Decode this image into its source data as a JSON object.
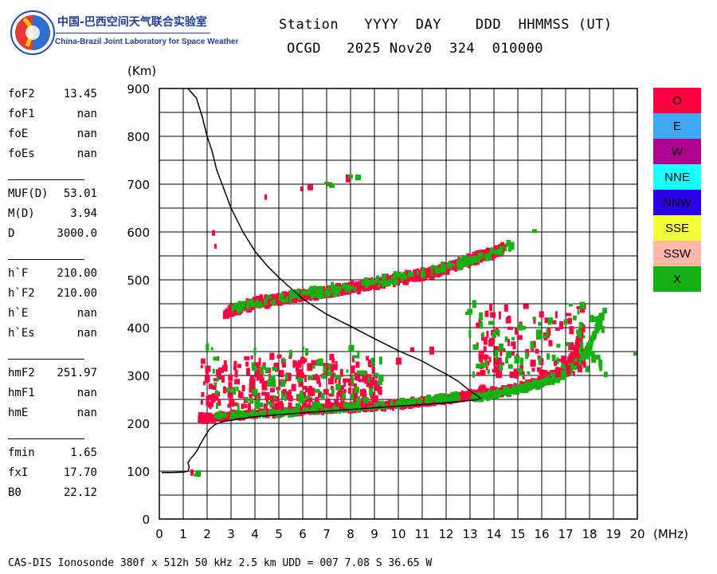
{
  "logo": {
    "cn_text": "中国-巴西空间天气联合实验室",
    "en_text": "China-Brazil Joint Laboratory for Space Weather"
  },
  "header": {
    "line1": "Station   YYYY  DAY    DDD  HHMMSS (UT)",
    "line2": "OCGD   2025 Nov20  324  010000"
  },
  "params": {
    "group1": [
      {
        "label": "foF2",
        "value": "13.45"
      },
      {
        "label": "foF1",
        "value": "nan"
      },
      {
        "label": "foE",
        "value": "nan"
      },
      {
        "label": "foEs",
        "value": "nan"
      }
    ],
    "group2": [
      {
        "label": "MUF(D)",
        "value": "53.01"
      },
      {
        "label": "M(D)",
        "value": "3.94"
      },
      {
        "label": "D",
        "value": "3000.0"
      }
    ],
    "group3": [
      {
        "label": "h`F",
        "value": "210.00"
      },
      {
        "label": "h`F2",
        "value": "210.00"
      },
      {
        "label": "h`E",
        "value": "nan"
      },
      {
        "label": "h`Es",
        "value": "nan"
      }
    ],
    "group4": [
      {
        "label": "hmF2",
        "value": "251.97"
      },
      {
        "label": "hmF1",
        "value": "nan"
      },
      {
        "label": "hmE",
        "value": "nan"
      }
    ],
    "group5": [
      {
        "label": "fmin",
        "value": "1.65"
      },
      {
        "label": "fxI",
        "value": "17.70"
      },
      {
        "label": "B0",
        "value": "22.12"
      }
    ]
  },
  "footer": "CAS-DIS Ionosonde 380f x 512h 50 kHz 2.5 km UDD = 007 7.08 S 36.65 W",
  "chart_data": {
    "type": "scatter",
    "title": "",
    "xlabel": "(MHz)",
    "ylabel": "(Km)",
    "xlim": [
      0,
      20
    ],
    "ylim": [
      0,
      900
    ],
    "xticks": [
      0,
      1,
      2,
      3,
      4,
      5,
      6,
      7,
      8,
      9,
      10,
      11,
      12,
      13,
      14,
      15,
      16,
      17,
      18,
      19,
      20
    ],
    "yticks": [
      0,
      100,
      200,
      300,
      400,
      500,
      600,
      700,
      800,
      900
    ],
    "grid": true,
    "legend_position": "right",
    "legend": [
      {
        "name": "O",
        "color": "#ff0040",
        "text_color": "#000000"
      },
      {
        "name": "E",
        "color": "#3fa9f5",
        "text_color": "#000000"
      },
      {
        "name": "W",
        "color": "#b0008f",
        "text_color": "#000000"
      },
      {
        "name": "NNE",
        "color": "#17ffff",
        "text_color": "#000000"
      },
      {
        "name": "NNW",
        "color": "#2a00e6",
        "text_color": "#000000"
      },
      {
        "name": "SSE",
        "color": "#f5ff3a",
        "text_color": "#000000"
      },
      {
        "name": "SSW",
        "color": "#ffb6a8",
        "text_color": "#000000"
      },
      {
        "name": "X",
        "color": "#14b014",
        "text_color": "#000000"
      }
    ],
    "echo_regions": [
      {
        "name": "O",
        "kind": "trace",
        "points": [
          [
            1.6,
            211
          ],
          [
            2.5,
            214
          ],
          [
            4,
            220
          ],
          [
            6,
            227
          ],
          [
            8,
            233
          ],
          [
            10,
            240
          ],
          [
            11.5,
            248
          ],
          [
            12.5,
            255
          ],
          [
            13.3,
            262
          ],
          [
            13.45,
            270
          ]
        ],
        "spread": 5,
        "density": 70
      },
      {
        "name": "X",
        "kind": "trace",
        "points": [
          [
            2.2,
            214
          ],
          [
            4,
            219
          ],
          [
            6,
            226
          ],
          [
            8,
            233
          ],
          [
            10,
            241
          ],
          [
            11.5,
            250
          ],
          [
            12.5,
            258
          ]
        ],
        "spread": 4,
        "density": 28
      },
      {
        "name": "O",
        "kind": "trace",
        "points": [
          [
            12.9,
            258
          ],
          [
            14,
            266
          ],
          [
            15,
            275
          ],
          [
            16,
            290
          ],
          [
            16.8,
            310
          ],
          [
            17.3,
            345
          ],
          [
            17.6,
            400
          ]
        ],
        "spread": 6,
        "density": 45
      },
      {
        "name": "X",
        "kind": "trace",
        "points": [
          [
            13.0,
            253
          ],
          [
            14,
            262
          ],
          [
            15,
            272
          ],
          [
            16,
            284
          ],
          [
            16.8,
            300
          ],
          [
            17.5,
            330
          ],
          [
            18,
            370
          ],
          [
            18.4,
            420
          ]
        ],
        "spread": 5,
        "density": 40
      },
      {
        "name": "O",
        "kind": "trace",
        "points": [
          [
            2.6,
            430
          ],
          [
            4,
            452
          ],
          [
            5.5,
            465
          ],
          [
            7,
            475
          ],
          [
            8.5,
            488
          ],
          [
            10,
            502
          ],
          [
            11.5,
            518
          ],
          [
            13,
            542
          ],
          [
            14.3,
            565
          ]
        ],
        "spread": 8,
        "density": 85
      },
      {
        "name": "X",
        "kind": "trace",
        "points": [
          [
            3,
            442
          ],
          [
            5,
            462
          ],
          [
            7,
            478
          ],
          [
            9,
            495
          ],
          [
            11,
            515
          ],
          [
            13,
            540
          ],
          [
            14.7,
            572
          ]
        ],
        "spread": 8,
        "density": 26
      },
      {
        "name": "O",
        "kind": "blob",
        "xr": [
          1.7,
          9.2
        ],
        "yr": [
          235,
          340
        ],
        "density": 260
      },
      {
        "name": "X",
        "kind": "blob",
        "xr": [
          1.9,
          9.3
        ],
        "yr": [
          235,
          360
        ],
        "density": 90
      },
      {
        "name": "O",
        "kind": "blob",
        "xr": [
          13.2,
          17.8
        ],
        "yr": [
          300,
          445
        ],
        "density": 130
      },
      {
        "name": "X",
        "kind": "blob",
        "xr": [
          12.8,
          18.6
        ],
        "yr": [
          300,
          450
        ],
        "density": 80
      },
      {
        "name": "O",
        "kind": "points",
        "points": [
          [
            1.3,
            97
          ],
          [
            2.2,
            598
          ],
          [
            2.3,
            570
          ],
          [
            4.4,
            673
          ],
          [
            5.9,
            690
          ],
          [
            6.2,
            693
          ],
          [
            7,
            700
          ],
          [
            7.8,
            712
          ],
          [
            10.5,
            355
          ],
          [
            11.3,
            352
          ],
          [
            9.9,
            330
          ]
        ]
      },
      {
        "name": "X",
        "kind": "points",
        "points": [
          [
            1.45,
            92
          ],
          [
            1.5,
            95
          ],
          [
            6.9,
            702
          ],
          [
            7.1,
            697
          ],
          [
            7.9,
            716
          ],
          [
            8.2,
            714
          ],
          [
            15.6,
            602
          ],
          [
            19.9,
            345
          ],
          [
            12.8,
            430
          ]
        ]
      }
    ],
    "profile_curve": [
      [
        0.1,
        97
      ],
      [
        0.5,
        97
      ],
      [
        1.0,
        98
      ],
      [
        1.2,
        100
      ],
      [
        1.25,
        108
      ],
      [
        1.2,
        118
      ],
      [
        1.32,
        127
      ],
      [
        1.43,
        133
      ],
      [
        1.58,
        143
      ],
      [
        1.7,
        155
      ],
      [
        1.9,
        172
      ],
      [
        2.1,
        188
      ],
      [
        2.35,
        198
      ],
      [
        2.7,
        204
      ],
      [
        4,
        214
      ],
      [
        6,
        222
      ],
      [
        8,
        229
      ],
      [
        10,
        236
      ],
      [
        11.5,
        241
      ],
      [
        12.5,
        245
      ],
      [
        13.2,
        249
      ],
      [
        13.45,
        252
      ],
      [
        13.3,
        258
      ],
      [
        13.0,
        268
      ],
      [
        12.5,
        288
      ],
      [
        12.0,
        303
      ],
      [
        11.5,
        316
      ],
      [
        11.0,
        330
      ],
      [
        10.0,
        352
      ],
      [
        9.0,
        377
      ],
      [
        8.0,
        403
      ],
      [
        7.0,
        428
      ],
      [
        6.0,
        460
      ],
      [
        5.0,
        505
      ],
      [
        4.5,
        530
      ],
      [
        4.0,
        560
      ],
      [
        3.5,
        600
      ],
      [
        3.0,
        650
      ],
      [
        2.7,
        690
      ],
      [
        2.4,
        730
      ],
      [
        2.2,
        770
      ],
      [
        2.0,
        800
      ],
      [
        1.8,
        840
      ],
      [
        1.55,
        880
      ],
      [
        1.2,
        900
      ]
    ]
  }
}
